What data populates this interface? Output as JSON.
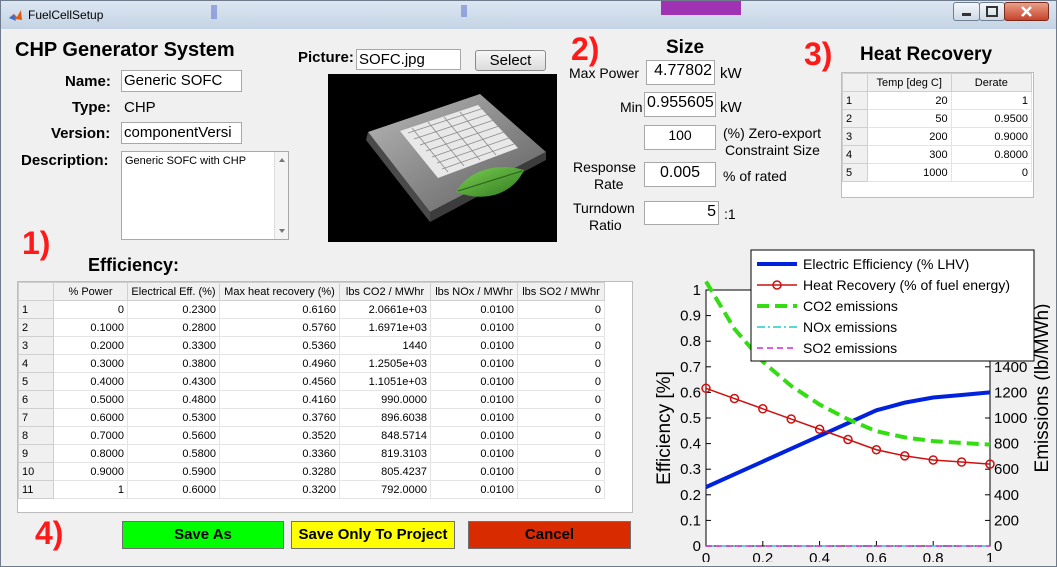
{
  "window": {
    "title": "FuelCellSetup"
  },
  "header": {
    "system_title": "CHP Generator System"
  },
  "fields": {
    "name_label": "Name:",
    "name_value": "Generic SOFC",
    "type_label": "Type:",
    "type_value": "CHP",
    "version_label": "Version:",
    "version_value": "componentVersi",
    "description_label": "Description:",
    "description_value": "Generic SOFC with CHP"
  },
  "picture": {
    "label": "Picture:",
    "filename": "SOFC.jpg",
    "select_label": "Select"
  },
  "markers": {
    "m1": "1)",
    "m2": "2)",
    "m3": "3)",
    "m4": "4)"
  },
  "size": {
    "title": "Size",
    "max_power_label": "Max Power",
    "max_power_value": "4.77802",
    "max_power_unit": "kW",
    "min_label": "Min",
    "min_value": "0.955605",
    "min_unit": "kW",
    "zero_export_value": "100",
    "zero_export_label_1": "(%) Zero-export",
    "zero_export_label_2": "Constraint Size",
    "response_label_1": "Response",
    "response_label_2": "Rate",
    "response_value": "0.005",
    "response_unit": "% of rated",
    "turndown_label_1": "Turndown",
    "turndown_label_2": "Ratio",
    "turndown_value": "5",
    "turndown_unit": ":1"
  },
  "heat_recovery": {
    "title": "Heat Recovery",
    "columns": [
      "Temp [deg C]",
      "Derate"
    ],
    "rows": [
      {
        "idx": "1",
        "temp": "20",
        "derate": "1"
      },
      {
        "idx": "2",
        "temp": "50",
        "derate": "0.9500"
      },
      {
        "idx": "3",
        "temp": "200",
        "derate": "0.9000"
      },
      {
        "idx": "4",
        "temp": "300",
        "derate": "0.8000"
      },
      {
        "idx": "5",
        "temp": "1000",
        "derate": "0"
      }
    ]
  },
  "efficiency": {
    "title": "Efficiency:",
    "columns": [
      "% Power",
      "Electrical Eff. (%)",
      "Max heat recovery (%)",
      "lbs CO2 / MWhr",
      "lbs NOx / MWhr",
      "lbs SO2 / MWhr"
    ],
    "rows": [
      [
        "1",
        "0",
        "0.2300",
        "0.6160",
        "2.0661e+03",
        "0.0100",
        "0"
      ],
      [
        "2",
        "0.1000",
        "0.2800",
        "0.5760",
        "1.6971e+03",
        "0.0100",
        "0"
      ],
      [
        "3",
        "0.2000",
        "0.3300",
        "0.5360",
        "1440",
        "0.0100",
        "0"
      ],
      [
        "4",
        "0.3000",
        "0.3800",
        "0.4960",
        "1.2505e+03",
        "0.0100",
        "0"
      ],
      [
        "5",
        "0.4000",
        "0.4300",
        "0.4560",
        "1.1051e+03",
        "0.0100",
        "0"
      ],
      [
        "6",
        "0.5000",
        "0.4800",
        "0.4160",
        "990.0000",
        "0.0100",
        "0"
      ],
      [
        "7",
        "0.6000",
        "0.5300",
        "0.3760",
        "896.6038",
        "0.0100",
        "0"
      ],
      [
        "8",
        "0.7000",
        "0.5600",
        "0.3520",
        "848.5714",
        "0.0100",
        "0"
      ],
      [
        "9",
        "0.8000",
        "0.5800",
        "0.3360",
        "819.3103",
        "0.0100",
        "0"
      ],
      [
        "10",
        "0.9000",
        "0.5900",
        "0.3280",
        "805.4237",
        "0.0100",
        "0"
      ],
      [
        "11",
        "1",
        "0.6000",
        "0.3200",
        "792.0000",
        "0.0100",
        "0"
      ]
    ]
  },
  "buttons": {
    "save_as": "Save As",
    "save_project": "Save Only To Project",
    "cancel": "Cancel"
  },
  "colors": {
    "save_as": "#00ff00",
    "save_project": "#ffff00",
    "cancel": "#d92b00",
    "marker": "#ff1a1a"
  },
  "chart_data": {
    "type": "line",
    "x": [
      0,
      0.1,
      0.2,
      0.3,
      0.4,
      0.5,
      0.6,
      0.7,
      0.8,
      0.9,
      1
    ],
    "ylabel": "Efficiency [%]",
    "ylabel_right": "Emissions (lb/MWh)",
    "xlim": [
      0,
      1
    ],
    "ylim": [
      0,
      1
    ],
    "ylim_right": [
      0,
      2000
    ],
    "x_ticks": [
      "0",
      "0.2",
      "0.4",
      "0.6",
      "0.8",
      "1"
    ],
    "y_ticks": [
      "0",
      "0.1",
      "0.2",
      "0.3",
      "0.4",
      "0.5",
      "0.6",
      "0.7",
      "0.8",
      "0.9",
      "1"
    ],
    "y_ticks_right": [
      "0",
      "200",
      "400",
      "600",
      "800",
      "1000",
      "1200",
      "1400",
      "1600"
    ],
    "legend_position": "top-right",
    "series": [
      {
        "name": "Electric Efficiency (% LHV)",
        "axis": "left",
        "color": "#0022dd",
        "style": "solid",
        "values": [
          0.23,
          0.28,
          0.33,
          0.38,
          0.43,
          0.48,
          0.53,
          0.56,
          0.58,
          0.59,
          0.6
        ]
      },
      {
        "name": "Heat Recovery (% of fuel energy)",
        "axis": "left",
        "color": "#cc1111",
        "style": "circles",
        "values": [
          0.616,
          0.576,
          0.536,
          0.496,
          0.456,
          0.416,
          0.376,
          0.352,
          0.336,
          0.328,
          0.32
        ]
      },
      {
        "name": "CO2 emissions",
        "axis": "right",
        "color": "#33dd11",
        "style": "dashed",
        "values": [
          2066.1,
          1697.1,
          1440,
          1250.5,
          1105.1,
          990,
          896.6,
          848.6,
          819.3,
          805.4,
          792
        ]
      },
      {
        "name": "NOx emissions",
        "axis": "right",
        "color": "#22cccc",
        "style": "dashdot",
        "values": [
          0.01,
          0.01,
          0.01,
          0.01,
          0.01,
          0.01,
          0.01,
          0.01,
          0.01,
          0.01,
          0.01
        ]
      },
      {
        "name": "SO2 emissions",
        "axis": "right",
        "color": "#dd22dd",
        "style": "dashed-thin",
        "values": [
          0,
          0,
          0,
          0,
          0,
          0,
          0,
          0,
          0,
          0,
          0
        ]
      }
    ]
  }
}
